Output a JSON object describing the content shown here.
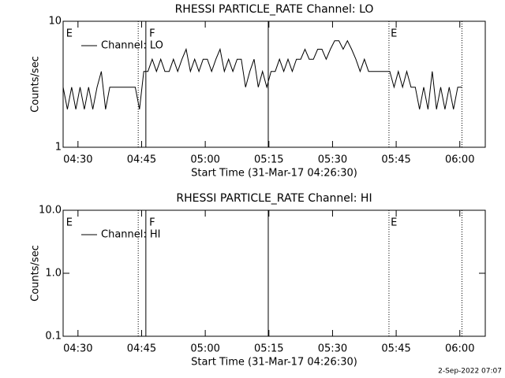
{
  "chart_data": [
    {
      "type": "line",
      "title": "RHESSI PARTICLE_RATE Channel: LO",
      "xlabel": "Start Time (31-Mar-17 04:26:30)",
      "ylabel": "Counts/sec",
      "log": true,
      "xlim": [
        266.5,
        366
      ],
      "ylim": [
        1,
        10
      ],
      "xticks": [
        {
          "value": 270,
          "label": "04:30"
        },
        {
          "value": 285,
          "label": "04:45"
        },
        {
          "value": 300,
          "label": "05:00"
        },
        {
          "value": 315,
          "label": "05:15"
        },
        {
          "value": 330,
          "label": "05:30"
        },
        {
          "value": 345,
          "label": "05:45"
        },
        {
          "value": 360,
          "label": "06:00"
        }
      ],
      "yticks": [
        1,
        10
      ],
      "vlines": [
        {
          "x": 284.2,
          "style": "dotted"
        },
        {
          "x": 286.0,
          "style": "solid"
        },
        {
          "x": 314.85,
          "style": "solid"
        },
        {
          "x": 343.3,
          "style": "dotted"
        },
        {
          "x": 360.5,
          "style": "dotted"
        }
      ],
      "flags": [
        {
          "x": 267.2,
          "label": "E"
        },
        {
          "x": 286.8,
          "label": "F"
        },
        {
          "x": 343.7,
          "label": "E"
        }
      ],
      "x": [
        266.5,
        267.5,
        268.5,
        269.5,
        270.5,
        271.5,
        272.5,
        273.5,
        274.5,
        275.5,
        276.5,
        277.5,
        278.5,
        279.5,
        280.5,
        281.5,
        282.5,
        283.5,
        284.5,
        285.5,
        286.5,
        287.5,
        288.5,
        289.5,
        290.5,
        291.5,
        292.5,
        293.5,
        294.5,
        295.5,
        296.5,
        297.5,
        298.5,
        299.5,
        300.5,
        301.5,
        302.5,
        303.5,
        304.5,
        305.5,
        306.5,
        307.5,
        308.5,
        309.5,
        310.5,
        311.5,
        312.5,
        313.5,
        314.5,
        315.5,
        316.5,
        317.5,
        318.5,
        319.5,
        320.5,
        321.5,
        322.5,
        323.5,
        324.5,
        325.5,
        326.5,
        327.5,
        328.5,
        329.5,
        330.5,
        331.5,
        332.5,
        333.5,
        334.5,
        335.5,
        336.5,
        337.5,
        338.5,
        339.5,
        340.5,
        341.5,
        342.5,
        343.5,
        344.5,
        345.5,
        346.5,
        347.5,
        348.5,
        349.5,
        350.5,
        351.5,
        352.5,
        353.5,
        354.5,
        355.5,
        356.5,
        357.5,
        358.5,
        359.5,
        360.5
      ],
      "series": [
        {
          "name": "Channel: LO",
          "color": "#000000",
          "values": [
            3,
            2,
            3,
            2,
            3,
            2,
            3,
            2,
            3,
            4,
            2,
            3,
            3,
            3,
            3,
            3,
            3,
            3,
            2,
            4,
            4,
            5,
            4,
            5,
            4,
            4,
            5,
            4,
            5,
            6,
            4,
            5,
            4,
            5,
            5,
            4,
            5,
            6,
            4,
            5,
            4,
            5,
            5,
            3,
            4,
            5,
            3,
            4,
            3,
            4,
            4,
            5,
            4,
            5,
            4,
            5,
            5,
            6,
            5,
            5,
            6,
            6,
            5,
            6,
            7,
            7,
            6,
            7,
            6,
            5,
            4,
            5,
            4,
            4,
            4,
            4,
            4,
            4,
            3,
            4,
            3,
            4,
            3,
            3,
            2,
            3,
            2,
            4,
            2,
            3,
            2,
            3,
            2,
            3,
            3
          ]
        }
      ]
    },
    {
      "type": "line",
      "title": "RHESSI PARTICLE_RATE Channel: HI",
      "xlabel": "Start Time (31-Mar-17 04:26:30)",
      "ylabel": "Counts/sec",
      "log": true,
      "xlim": [
        266.5,
        366
      ],
      "ylim": [
        0.1,
        10
      ],
      "xticks": [
        {
          "value": 270,
          "label": "04:30"
        },
        {
          "value": 285,
          "label": "04:45"
        },
        {
          "value": 300,
          "label": "05:00"
        },
        {
          "value": 315,
          "label": "05:15"
        },
        {
          "value": 330,
          "label": "05:30"
        },
        {
          "value": 345,
          "label": "05:45"
        },
        {
          "value": 360,
          "label": "06:00"
        }
      ],
      "yticks": [
        0.1,
        {
          "value": 1,
          "label": "1.0"
        },
        {
          "value": 10,
          "label": "10.0"
        }
      ],
      "vlines": [
        {
          "x": 284.2,
          "style": "dotted"
        },
        {
          "x": 286.0,
          "style": "solid"
        },
        {
          "x": 314.85,
          "style": "solid"
        },
        {
          "x": 343.3,
          "style": "dotted"
        },
        {
          "x": 360.5,
          "style": "dotted"
        }
      ],
      "flags": [
        {
          "x": 267.2,
          "label": "E"
        },
        {
          "x": 286.8,
          "label": "F"
        },
        {
          "x": 343.7,
          "label": "E"
        }
      ],
      "x": [],
      "series": [
        {
          "name": "Channel: HI",
          "color": "#000000",
          "values": []
        }
      ]
    }
  ],
  "footer": "2-Sep-2022 07:07"
}
